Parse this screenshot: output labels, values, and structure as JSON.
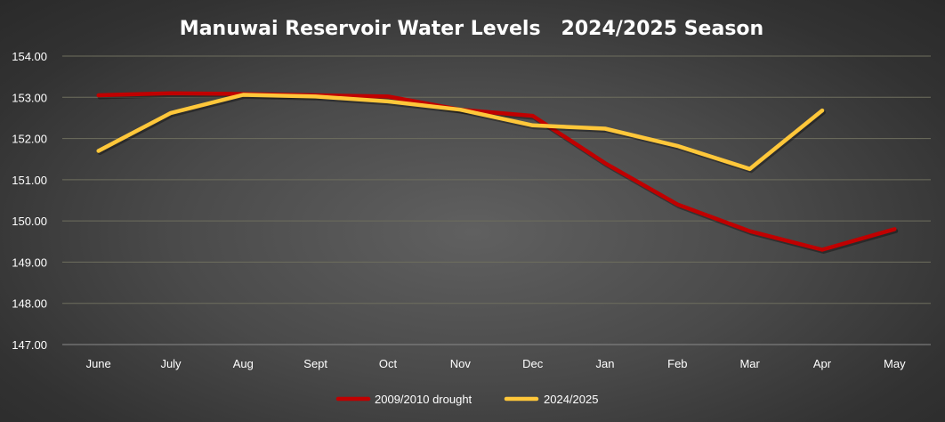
{
  "chart_data": {
    "type": "line",
    "title": "Manuwai Reservoir Water Levels   2024/2025 Season",
    "xlabel": "",
    "ylabel": "",
    "categories": [
      "June",
      "July",
      "Aug",
      "Sept",
      "Oct",
      "Nov",
      "Dec",
      "Jan",
      "Feb",
      "Mar",
      "Apr",
      "May"
    ],
    "ylim": [
      147,
      154
    ],
    "yticks": [
      "147.00",
      "148.00",
      "149.00",
      "150.00",
      "151.00",
      "152.00",
      "153.00",
      "154.00"
    ],
    "grid": true,
    "legend_position": "bottom",
    "series": [
      {
        "name": "2009/2010 drought",
        "color": "#c00000",
        "values": [
          153.05,
          153.1,
          153.08,
          153.05,
          153.02,
          152.7,
          152.55,
          151.4,
          150.4,
          149.75,
          149.3,
          149.8
        ]
      },
      {
        "name": "2024/2025",
        "color": "#ffc73a",
        "values": [
          151.7,
          152.62,
          153.06,
          153.02,
          152.9,
          152.7,
          152.32,
          152.24,
          151.82,
          151.26,
          152.68,
          null
        ]
      }
    ]
  }
}
